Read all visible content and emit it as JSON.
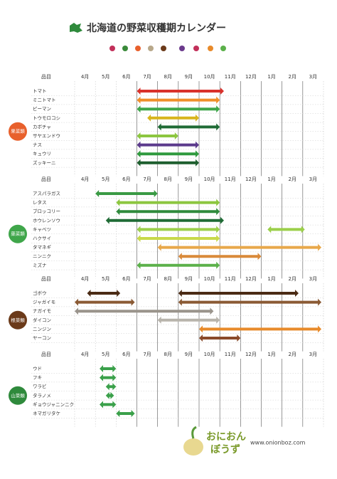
{
  "chart_data": {
    "type": "gantt",
    "title": "北海道の野菜収穫期カレンダー",
    "item_header": "品目",
    "categories": [
      "4月",
      "5月",
      "6月",
      "7月",
      "8月",
      "9月",
      "10月",
      "11月",
      "12月",
      "1月",
      "2月",
      "3月"
    ],
    "xlim": [
      0,
      12
    ],
    "groups": [
      {
        "name": "果菜類",
        "color": "#e8602c",
        "rows": [
          {
            "name": "トマト",
            "color": "#d9312b",
            "ranges": [
              [
                3,
                7.2
              ]
            ]
          },
          {
            "name": "ミニトマト",
            "color": "#ef8f2a",
            "ranges": [
              [
                3,
                7
              ]
            ]
          },
          {
            "name": "ピーマン",
            "color": "#3fa64a",
            "ranges": [
              [
                3,
                7
              ]
            ]
          },
          {
            "name": "トウモロコシ",
            "color": "#d8b51c",
            "ranges": [
              [
                3.5,
                6
              ]
            ]
          },
          {
            "name": "カボチャ",
            "color": "#1f6b35",
            "ranges": [
              [
                4,
                7
              ]
            ]
          },
          {
            "name": "サヤエンドウ",
            "color": "#8cc63f",
            "ranges": [
              [
                3,
                5
              ]
            ]
          },
          {
            "name": "ナス",
            "color": "#5b3a8c",
            "ranges": [
              [
                3,
                6
              ]
            ]
          },
          {
            "name": "キュウリ",
            "color": "#2f9a3e",
            "ranges": [
              [
                3,
                6
              ]
            ]
          },
          {
            "name": "ズッキーニ",
            "color": "#1d5e2e",
            "ranges": [
              [
                3,
                6
              ]
            ]
          }
        ]
      },
      {
        "name": "葉菜類",
        "color": "#3fa64a",
        "rows": [
          {
            "name": "アスパラガス",
            "color": "#3a9a44",
            "ranges": [
              [
                1,
                4
              ]
            ]
          },
          {
            "name": "レタス",
            "color": "#8cc63f",
            "ranges": [
              [
                2,
                7
              ]
            ]
          },
          {
            "name": "ブロッコリー",
            "color": "#2f8a3c",
            "ranges": [
              [
                2,
                7
              ]
            ]
          },
          {
            "name": "ホウレンソウ",
            "color": "#1f6b35",
            "ranges": [
              [
                1.5,
                7.2
              ]
            ]
          },
          {
            "name": "キャベツ",
            "color": "#9bcf4a",
            "ranges": [
              [
                3,
                7
              ],
              [
                9.3,
                11.1
              ]
            ]
          },
          {
            "name": "ハクサイ",
            "color": "#c8d94a",
            "ranges": [
              [
                3,
                7
              ]
            ]
          },
          {
            "name": "タマネギ",
            "color": "#e8a84a",
            "ranges": [
              [
                4,
                11.9
              ]
            ]
          },
          {
            "name": "ニンニク",
            "color": "#d98a3a",
            "ranges": [
              [
                5,
                9
              ]
            ]
          },
          {
            "name": "ミズナ",
            "color": "#5bb04a",
            "ranges": [
              [
                3,
                7
              ]
            ]
          }
        ]
      },
      {
        "name": "根菜類",
        "color": "#6b3a1a",
        "rows": [
          {
            "name": "ゴボウ",
            "color": "#4a2a14",
            "ranges": [
              [
                0.6,
                2.2
              ],
              [
                5,
                10.8
              ]
            ]
          },
          {
            "name": "ジャガイモ",
            "color": "#8a5a34",
            "ranges": [
              [
                0,
                2.9
              ],
              [
                5,
                11.9
              ]
            ]
          },
          {
            "name": "ナガイモ",
            "color": "#9a948c",
            "ranges": [
              [
                0,
                6.7
              ]
            ]
          },
          {
            "name": "ダイコン",
            "color": "#b8b4ac",
            "ranges": [
              [
                4,
                7
              ]
            ]
          },
          {
            "name": "ニンジン",
            "color": "#e88a2a",
            "ranges": [
              [
                6,
                11.9
              ]
            ]
          },
          {
            "name": "ヤーコン",
            "color": "#8a4a2a",
            "ranges": [
              [
                6,
                8
              ]
            ]
          }
        ]
      },
      {
        "name": "山菜類",
        "color": "#2f8a3c",
        "rows": [
          {
            "name": "ウド",
            "color": "#3aa04a",
            "ranges": [
              [
                1.2,
                2
              ]
            ]
          },
          {
            "name": "フキ",
            "color": "#3aa04a",
            "ranges": [
              [
                1.2,
                2
              ]
            ]
          },
          {
            "name": "ワラビ",
            "color": "#3aa04a",
            "ranges": [
              [
                1.5,
                2
              ]
            ]
          },
          {
            "name": "タラノメ",
            "color": "#3aa04a",
            "ranges": [
              [
                1.5,
                1.9
              ]
            ]
          },
          {
            "name": "ギョウジャニンニク",
            "color": "#3aa04a",
            "ranges": [
              [
                1.2,
                2
              ]
            ]
          },
          {
            "name": "ネマガリタケ",
            "color": "#3aa04a",
            "ranges": [
              [
                2,
                2.9
              ]
            ]
          }
        ]
      }
    ]
  },
  "footer": {
    "logo_line1": "おにおん",
    "logo_line2": "ぼうず",
    "url": "www.onionboz.com"
  }
}
